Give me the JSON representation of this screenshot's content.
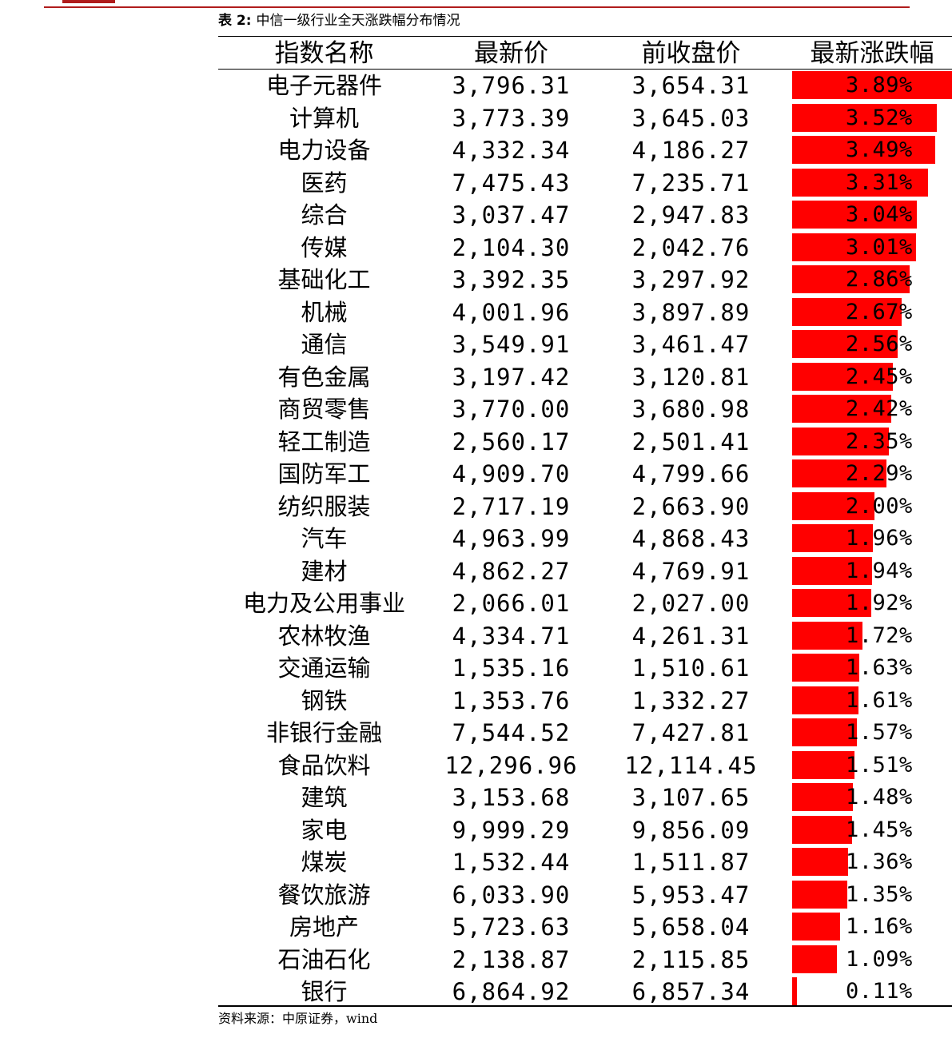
{
  "caption": {
    "label": "表 2:",
    "title": "中信一级行业全天涨跌幅分布情况"
  },
  "colors": {
    "bar": "#ff0000",
    "accent_rule": "#b01c1c"
  },
  "table": {
    "headers": [
      "指数名称",
      "最新价",
      "前收盘价",
      "最新涨跌幅"
    ],
    "max_change": 3.89,
    "rows": [
      {
        "name": "电子元器件",
        "latest": "3,796.31",
        "prev_close": "3,654.31",
        "change": "3.89%",
        "change_value": 3.89
      },
      {
        "name": "计算机",
        "latest": "3,773.39",
        "prev_close": "3,645.03",
        "change": "3.52%",
        "change_value": 3.52
      },
      {
        "name": "电力设备",
        "latest": "4,332.34",
        "prev_close": "4,186.27",
        "change": "3.49%",
        "change_value": 3.49
      },
      {
        "name": "医药",
        "latest": "7,475.43",
        "prev_close": "7,235.71",
        "change": "3.31%",
        "change_value": 3.31
      },
      {
        "name": "综合",
        "latest": "3,037.47",
        "prev_close": "2,947.83",
        "change": "3.04%",
        "change_value": 3.04
      },
      {
        "name": "传媒",
        "latest": "2,104.30",
        "prev_close": "2,042.76",
        "change": "3.01%",
        "change_value": 3.01
      },
      {
        "name": "基础化工",
        "latest": "3,392.35",
        "prev_close": "3,297.92",
        "change": "2.86%",
        "change_value": 2.86
      },
      {
        "name": "机械",
        "latest": "4,001.96",
        "prev_close": "3,897.89",
        "change": "2.67%",
        "change_value": 2.67
      },
      {
        "name": "通信",
        "latest": "3,549.91",
        "prev_close": "3,461.47",
        "change": "2.56%",
        "change_value": 2.56
      },
      {
        "name": "有色金属",
        "latest": "3,197.42",
        "prev_close": "3,120.81",
        "change": "2.45%",
        "change_value": 2.45
      },
      {
        "name": "商贸零售",
        "latest": "3,770.00",
        "prev_close": "3,680.98",
        "change": "2.42%",
        "change_value": 2.42
      },
      {
        "name": "轻工制造",
        "latest": "2,560.17",
        "prev_close": "2,501.41",
        "change": "2.35%",
        "change_value": 2.35
      },
      {
        "name": "国防军工",
        "latest": "4,909.70",
        "prev_close": "4,799.66",
        "change": "2.29%",
        "change_value": 2.29
      },
      {
        "name": "纺织服装",
        "latest": "2,717.19",
        "prev_close": "2,663.90",
        "change": "2.00%",
        "change_value": 2.0
      },
      {
        "name": "汽车",
        "latest": "4,963.99",
        "prev_close": "4,868.43",
        "change": "1.96%",
        "change_value": 1.96
      },
      {
        "name": "建材",
        "latest": "4,862.27",
        "prev_close": "4,769.91",
        "change": "1.94%",
        "change_value": 1.94
      },
      {
        "name": "电力及公用事业",
        "latest": "2,066.01",
        "prev_close": "2,027.00",
        "change": "1.92%",
        "change_value": 1.92
      },
      {
        "name": "农林牧渔",
        "latest": "4,334.71",
        "prev_close": "4,261.31",
        "change": "1.72%",
        "change_value": 1.72
      },
      {
        "name": "交通运输",
        "latest": "1,535.16",
        "prev_close": "1,510.61",
        "change": "1.63%",
        "change_value": 1.63
      },
      {
        "name": "钢铁",
        "latest": "1,353.76",
        "prev_close": "1,332.27",
        "change": "1.61%",
        "change_value": 1.61
      },
      {
        "name": "非银行金融",
        "latest": "7,544.52",
        "prev_close": "7,427.81",
        "change": "1.57%",
        "change_value": 1.57
      },
      {
        "name": "食品饮料",
        "latest": "12,296.96",
        "prev_close": "12,114.45",
        "change": "1.51%",
        "change_value": 1.51
      },
      {
        "name": "建筑",
        "latest": "3,153.68",
        "prev_close": "3,107.65",
        "change": "1.48%",
        "change_value": 1.48
      },
      {
        "name": "家电",
        "latest": "9,999.29",
        "prev_close": "9,856.09",
        "change": "1.45%",
        "change_value": 1.45
      },
      {
        "name": "煤炭",
        "latest": "1,532.44",
        "prev_close": "1,511.87",
        "change": "1.36%",
        "change_value": 1.36
      },
      {
        "name": "餐饮旅游",
        "latest": "6,033.90",
        "prev_close": "5,953.47",
        "change": "1.35%",
        "change_value": 1.35
      },
      {
        "name": "房地产",
        "latest": "5,723.63",
        "prev_close": "5,658.04",
        "change": "1.16%",
        "change_value": 1.16
      },
      {
        "name": "石油石化",
        "latest": "2,138.87",
        "prev_close": "2,115.85",
        "change": "1.09%",
        "change_value": 1.09
      },
      {
        "name": "银行",
        "latest": "6,864.92",
        "prev_close": "6,857.34",
        "change": "0.11%",
        "change_value": 0.11
      }
    ]
  },
  "source": "资料来源：中原证券，wind"
}
